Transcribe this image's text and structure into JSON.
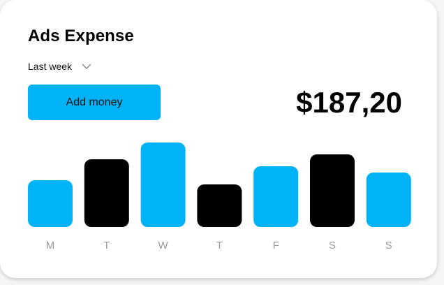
{
  "header": {
    "title": "Ads Expense",
    "period_selected": "Last week",
    "add_button_label": "Add money",
    "total_amount": "$187,20"
  },
  "colors": {
    "accent": "#00B2F6",
    "dark": "#000000",
    "label": "#9A9A9A"
  },
  "icons": {
    "period_dropdown": "chevron-down-icon"
  },
  "chart_data": {
    "type": "bar",
    "categories": [
      "M",
      "T",
      "W",
      "T",
      "F",
      "S",
      "S"
    ],
    "values": [
      67,
      97,
      121,
      61,
      87,
      104,
      78
    ],
    "colors": [
      "#00B2F6",
      "#000000",
      "#00B2F6",
      "#000000",
      "#00B2F6",
      "#000000",
      "#00B2F6"
    ],
    "title": "",
    "xlabel": "",
    "ylabel": "",
    "ylim": [
      0,
      121
    ],
    "grid": false,
    "legend": "none"
  }
}
